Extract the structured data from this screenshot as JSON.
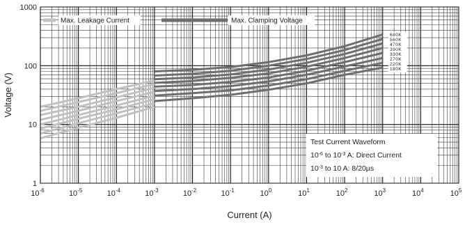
{
  "chart_data": {
    "type": "line",
    "xlabel": "Current (A)",
    "ylabel": "Voltage (V)",
    "x_scale": "log",
    "y_scale": "log",
    "xlim": [
      1e-06,
      100000
    ],
    "ylim": [
      1,
      1000
    ],
    "x_ticks": [
      {
        "base": "10",
        "exp": "-6"
      },
      {
        "base": "10",
        "exp": "-5"
      },
      {
        "base": "10",
        "exp": "-4"
      },
      {
        "base": "10",
        "exp": "-3"
      },
      {
        "base": "10",
        "exp": "-2"
      },
      {
        "base": "10",
        "exp": "-1"
      },
      {
        "base": "10",
        "exp": "0"
      },
      {
        "base": "10",
        "exp": "1"
      },
      {
        "base": "10",
        "exp": "2"
      },
      {
        "base": "10",
        "exp": "3"
      },
      {
        "base": "10",
        "exp": "4"
      },
      {
        "base": "10",
        "exp": "5"
      }
    ],
    "y_ticks": [
      "1",
      "10",
      "100",
      "1000"
    ],
    "grid": true,
    "legend": [
      {
        "label": "Max. Leakage Current",
        "color": "#c0c0c0"
      },
      {
        "label": "Max. Clamping Voltage",
        "color": "#6e6e6e"
      }
    ],
    "annotation": {
      "title": "Test Current Waveform",
      "line1_prefix": "10",
      "line1_exp1": "-6",
      "line1_mid": " to 10",
      "line1_exp2": "-3",
      "line1_suffix": " A: Direct Current",
      "line2_prefix": "10",
      "line2_exp": "-3",
      "line2_suffix": " to 10  A: 8/20µs"
    },
    "series": [
      {
        "name": "680K",
        "leakage": {
          "x": [
            1e-06,
            1e-05,
            0.0001,
            0.001
          ],
          "y": [
            20,
            28,
            40,
            56
          ]
        },
        "clamping": {
          "x": [
            0.001,
            0.01,
            0.1,
            1,
            10,
            100,
            1000
          ],
          "y": [
            80,
            85,
            95,
            115,
            150,
            215,
            340
          ]
        }
      },
      {
        "name": "560K",
        "leakage": {
          "x": [
            1e-06,
            1e-05,
            0.0001,
            0.001
          ],
          "y": [
            17,
            24,
            34,
            49
          ]
        },
        "clamping": {
          "x": [
            0.001,
            0.01,
            0.1,
            1,
            10,
            100,
            1000
          ],
          "y": [
            68,
            73,
            82,
            100,
            130,
            185,
            285
          ]
        }
      },
      {
        "name": "470K",
        "leakage": {
          "x": [
            1e-06,
            1e-05,
            0.0001,
            0.001
          ],
          "y": [
            14.5,
            20,
            29,
            42
          ]
        },
        "clamping": {
          "x": [
            0.001,
            0.01,
            0.1,
            1,
            10,
            100,
            1000
          ],
          "y": [
            59,
            63,
            71,
            86,
            112,
            158,
            240
          ]
        }
      },
      {
        "name": "390K",
        "leakage": {
          "x": [
            1e-06,
            1e-05,
            0.0001,
            0.001
          ],
          "y": [
            12,
            17,
            25,
            36
          ]
        },
        "clamping": {
          "x": [
            0.001,
            0.01,
            0.1,
            1,
            10,
            100,
            1000
          ],
          "y": [
            51,
            55,
            62,
            74,
            96,
            135,
            200
          ]
        }
      },
      {
        "name": "330K",
        "leakage": {
          "x": [
            1e-06,
            1e-05,
            0.0001,
            0.001
          ],
          "y": [
            10,
            14.5,
            21,
            31
          ]
        },
        "clamping": {
          "x": [
            0.001,
            0.01,
            0.1,
            1,
            10,
            100,
            1000
          ],
          "y": [
            44,
            47,
            53,
            63,
            82,
            115,
            165
          ]
        }
      },
      {
        "name": "270K",
        "leakage": {
          "x": [
            1e-06,
            1e-05,
            0.0001,
            0.001
          ],
          "y": [
            8.5,
            12.5,
            18,
            27
          ]
        },
        "clamping": {
          "x": [
            0.001,
            0.01,
            0.1,
            1,
            10,
            100,
            1000
          ],
          "y": [
            37,
            40,
            45,
            54,
            70,
            97,
            135
          ]
        }
      },
      {
        "name": "220K",
        "leakage": {
          "x": [
            1e-06,
            1e-05,
            0.0001,
            0.001
          ],
          "y": [
            7,
            10.5,
            15.5,
            23
          ]
        },
        "clamping": {
          "x": [
            0.001,
            0.01,
            0.1,
            1,
            10,
            100,
            1000
          ],
          "y": [
            31,
            34,
            38,
            46,
            59,
            82,
            112
          ]
        }
      },
      {
        "name": "180K",
        "leakage": {
          "x": [
            1e-06,
            1e-05,
            0.0001,
            0.001
          ],
          "y": [
            5.8,
            8.8,
            13,
            20
          ]
        },
        "clamping": {
          "x": [
            0.001,
            0.01,
            0.1,
            1,
            10,
            100,
            1000
          ],
          "y": [
            25,
            28,
            32,
            39,
            50,
            70,
            93
          ]
        }
      }
    ]
  }
}
